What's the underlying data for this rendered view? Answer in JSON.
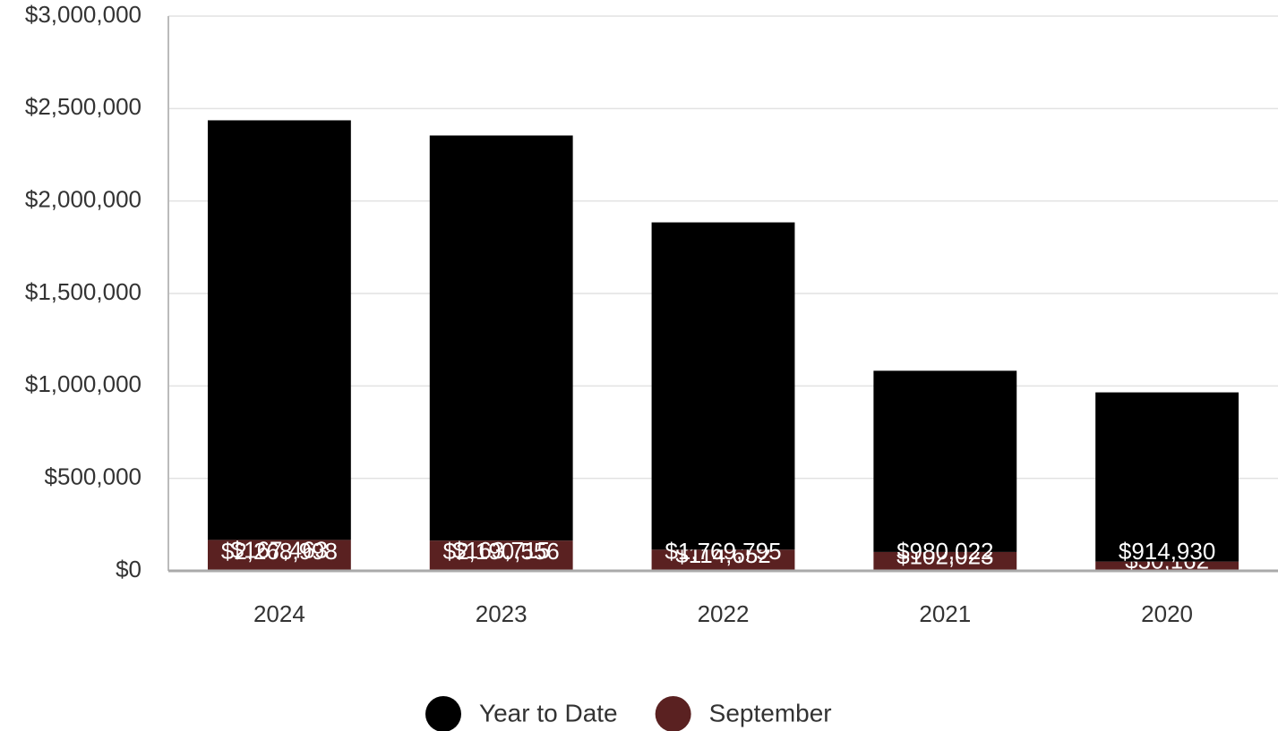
{
  "chart_data": {
    "type": "stacked_bar",
    "categories": [
      "2024",
      "2023",
      "2022",
      "2021",
      "2020"
    ],
    "series": [
      {
        "name": "Year to Date",
        "color": "#000000",
        "values": [
          2268998,
          2190556,
          1769795,
          980022,
          914930
        ],
        "value_labels": [
          "$2,268,998",
          "$2,190,556",
          "$1,769,795",
          "$980,022",
          "$914,930"
        ]
      },
      {
        "name": "September",
        "color": "#5a2121",
        "values": [
          167463,
          163715,
          114652,
          102023,
          50162
        ],
        "value_labels": [
          "$167,463",
          "$163,715",
          "$114,652",
          "$102,023",
          "$50,162"
        ]
      }
    ],
    "ylim": [
      0,
      3000000
    ],
    "yticks": [
      {
        "value": 0,
        "label": "$0"
      },
      {
        "value": 500000,
        "label": "$500,000"
      },
      {
        "value": 1000000,
        "label": "$1,000,000"
      },
      {
        "value": 1500000,
        "label": "$1,500,000"
      },
      {
        "value": 2000000,
        "label": "$2,000,000"
      },
      {
        "value": 2500000,
        "label": "$2,500,000"
      },
      {
        "value": 3000000,
        "label": "$3,000,000"
      }
    ],
    "grid": true,
    "legend": "bottom"
  }
}
